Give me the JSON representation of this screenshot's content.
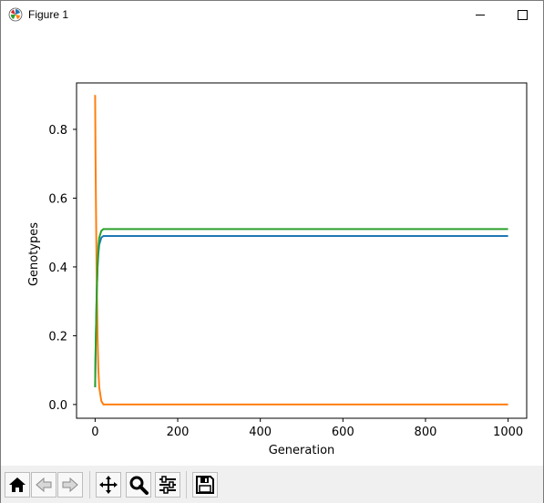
{
  "window": {
    "title": "Figure 1",
    "icons": {
      "app": "matplotlib-icon",
      "minimize": "minimize-icon",
      "maximize": "maximize-icon"
    }
  },
  "toolbar": {
    "buttons": [
      {
        "name": "home-button",
        "icon": "home-icon"
      },
      {
        "name": "back-button",
        "icon": "arrow-left-icon"
      },
      {
        "name": "forward-button",
        "icon": "arrow-right-icon"
      },
      {
        "name": "pan-button",
        "icon": "move-icon"
      },
      {
        "name": "zoom-button",
        "icon": "magnifier-icon"
      },
      {
        "name": "configure-subplots-button",
        "icon": "sliders-icon"
      },
      {
        "name": "save-button",
        "icon": "floppy-disk-icon"
      }
    ]
  },
  "chart_data": {
    "type": "line",
    "title": "",
    "xlabel": "Generation",
    "ylabel": "Genotypes",
    "xlim": [
      -45,
      1045
    ],
    "ylim": [
      -0.04,
      0.935
    ],
    "xticks": [
      0,
      200,
      400,
      600,
      800,
      1000
    ],
    "xtick_labels": [
      "0",
      "200",
      "400",
      "600",
      "800",
      "1000"
    ],
    "yticks": [
      0.0,
      0.2,
      0.4,
      0.6,
      0.8
    ],
    "ytick_labels": [
      "0.0",
      "0.2",
      "0.4",
      "0.6",
      "0.8"
    ],
    "grid": false,
    "legend": "none",
    "series": [
      {
        "color": "#1f77b4",
        "x": [
          0,
          1,
          2,
          3,
          4,
          5,
          6,
          8,
          10,
          15,
          20,
          50,
          100,
          1000
        ],
        "values": [
          0.05,
          0.135,
          0.21,
          0.275,
          0.33,
          0.37,
          0.4,
          0.44,
          0.465,
          0.485,
          0.49,
          0.49,
          0.49,
          0.49
        ]
      },
      {
        "color": "#ff7f0e",
        "x": [
          0,
          1,
          2,
          3,
          4,
          5,
          6,
          8,
          10,
          15,
          20,
          50,
          100,
          1000
        ],
        "values": [
          0.9,
          0.73,
          0.58,
          0.45,
          0.34,
          0.26,
          0.19,
          0.1,
          0.05,
          0.01,
          0.0,
          0.0,
          0.0,
          0.0
        ]
      },
      {
        "color": "#2ca02c",
        "x": [
          0,
          1,
          2,
          3,
          4,
          5,
          6,
          8,
          10,
          15,
          20,
          50,
          100,
          1000
        ],
        "values": [
          0.05,
          0.135,
          0.21,
          0.275,
          0.33,
          0.37,
          0.41,
          0.46,
          0.485,
          0.505,
          0.51,
          0.51,
          0.51,
          0.51
        ]
      }
    ]
  }
}
